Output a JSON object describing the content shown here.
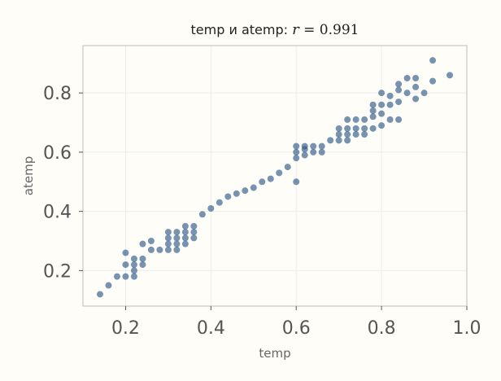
{
  "chart_data": {
    "type": "scatter",
    "title_prefix": "temp и atemp: ",
    "title_r_symbol": "r",
    "title_equals": " = ",
    "title_r_value": "0.991",
    "xlabel": "temp",
    "ylabel": "atemp",
    "xlim": [
      0.1,
      1.0
    ],
    "ylim": [
      0.08,
      0.96
    ],
    "x_ticks": [
      0.2,
      0.4,
      0.6,
      0.8,
      1.0
    ],
    "x_tick_labels": [
      "0.2",
      "0.4",
      "0.6",
      "0.8",
      "1.0"
    ],
    "y_ticks": [
      0.2,
      0.4,
      0.6,
      0.8
    ],
    "y_tick_labels": [
      "0.2",
      "0.4",
      "0.6",
      "0.8"
    ],
    "grid": true,
    "marker_color": "#2e5a87",
    "marker_opacity": 0.65,
    "points": [
      [
        0.14,
        0.12
      ],
      [
        0.16,
        0.15
      ],
      [
        0.18,
        0.18
      ],
      [
        0.2,
        0.18
      ],
      [
        0.2,
        0.22
      ],
      [
        0.2,
        0.26
      ],
      [
        0.22,
        0.18
      ],
      [
        0.22,
        0.2
      ],
      [
        0.22,
        0.22
      ],
      [
        0.22,
        0.24
      ],
      [
        0.24,
        0.22
      ],
      [
        0.24,
        0.24
      ],
      [
        0.24,
        0.29
      ],
      [
        0.26,
        0.27
      ],
      [
        0.26,
        0.3
      ],
      [
        0.28,
        0.27
      ],
      [
        0.3,
        0.27
      ],
      [
        0.3,
        0.29
      ],
      [
        0.3,
        0.31
      ],
      [
        0.3,
        0.33
      ],
      [
        0.32,
        0.27
      ],
      [
        0.32,
        0.29
      ],
      [
        0.32,
        0.31
      ],
      [
        0.32,
        0.33
      ],
      [
        0.34,
        0.29
      ],
      [
        0.34,
        0.31
      ],
      [
        0.34,
        0.33
      ],
      [
        0.34,
        0.35
      ],
      [
        0.36,
        0.31
      ],
      [
        0.36,
        0.33
      ],
      [
        0.36,
        0.35
      ],
      [
        0.38,
        0.39
      ],
      [
        0.4,
        0.41
      ],
      [
        0.42,
        0.43
      ],
      [
        0.44,
        0.45
      ],
      [
        0.46,
        0.46
      ],
      [
        0.48,
        0.47
      ],
      [
        0.5,
        0.48
      ],
      [
        0.52,
        0.5
      ],
      [
        0.54,
        0.51
      ],
      [
        0.56,
        0.53
      ],
      [
        0.58,
        0.55
      ],
      [
        0.6,
        0.5
      ],
      [
        0.6,
        0.58
      ],
      [
        0.6,
        0.6
      ],
      [
        0.6,
        0.62
      ],
      [
        0.62,
        0.59
      ],
      [
        0.62,
        0.61
      ],
      [
        0.62,
        0.62
      ],
      [
        0.64,
        0.6
      ],
      [
        0.64,
        0.62
      ],
      [
        0.66,
        0.6
      ],
      [
        0.66,
        0.62
      ],
      [
        0.68,
        0.64
      ],
      [
        0.7,
        0.64
      ],
      [
        0.7,
        0.66
      ],
      [
        0.7,
        0.68
      ],
      [
        0.72,
        0.64
      ],
      [
        0.72,
        0.66
      ],
      [
        0.72,
        0.68
      ],
      [
        0.72,
        0.71
      ],
      [
        0.74,
        0.66
      ],
      [
        0.74,
        0.68
      ],
      [
        0.74,
        0.71
      ],
      [
        0.76,
        0.66
      ],
      [
        0.76,
        0.68
      ],
      [
        0.76,
        0.71
      ],
      [
        0.78,
        0.68
      ],
      [
        0.78,
        0.72
      ],
      [
        0.78,
        0.74
      ],
      [
        0.78,
        0.76
      ],
      [
        0.8,
        0.69
      ],
      [
        0.8,
        0.73
      ],
      [
        0.8,
        0.76
      ],
      [
        0.8,
        0.8
      ],
      [
        0.82,
        0.71
      ],
      [
        0.82,
        0.76
      ],
      [
        0.82,
        0.79
      ],
      [
        0.84,
        0.71
      ],
      [
        0.84,
        0.77
      ],
      [
        0.84,
        0.81
      ],
      [
        0.84,
        0.83
      ],
      [
        0.86,
        0.8
      ],
      [
        0.86,
        0.85
      ],
      [
        0.88,
        0.78
      ],
      [
        0.88,
        0.82
      ],
      [
        0.88,
        0.85
      ],
      [
        0.9,
        0.8
      ],
      [
        0.92,
        0.84
      ],
      [
        0.92,
        0.91
      ],
      [
        0.96,
        0.86
      ]
    ]
  }
}
